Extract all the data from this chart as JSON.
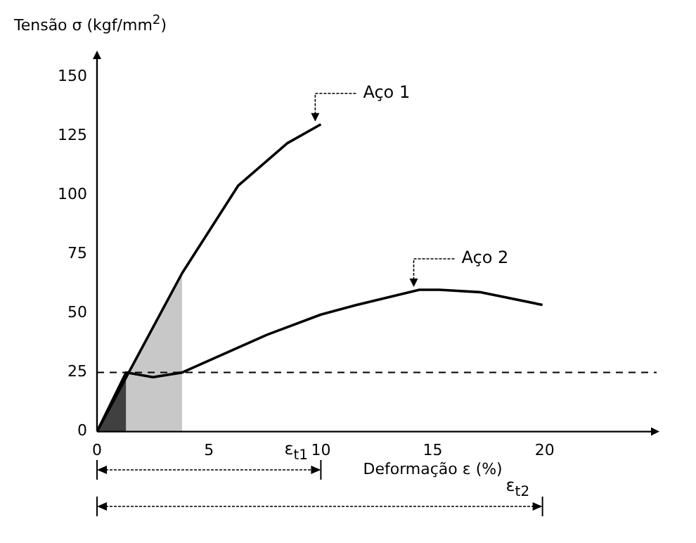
{
  "chart_data": {
    "type": "line",
    "xlabel": "Deformação ε (%)",
    "ylabel": "Tensão σ (kgf/mm$^{2}$)",
    "xlim": [
      0,
      25
    ],
    "xticks": [
      0,
      5,
      10,
      15,
      20
    ],
    "ylim": [
      0,
      160
    ],
    "yticks": [
      0,
      25,
      50,
      75,
      100,
      125,
      150
    ],
    "grid": false,
    "legend": false,
    "series": [
      {
        "type": "area",
        "color": "#c8c8c8",
        "x": [
          0,
          3.8
        ],
        "values": [
          0,
          67
        ]
      },
      {
        "type": "area",
        "color": "#404040",
        "x": [
          0,
          1.3
        ],
        "values": [
          0,
          25
        ]
      },
      {
        "name": "Aço 1",
        "color": "#000000",
        "x": [
          0,
          3.8,
          6.3,
          8.5,
          10
        ],
        "values": [
          0,
          67,
          104,
          122,
          130
        ]
      },
      {
        "name": "Aço 2",
        "color": "#000000",
        "x": [
          0,
          1.3,
          2.5,
          3.8,
          7.6,
          10,
          11.6,
          14.4,
          15.3,
          17.1,
          19.9
        ],
        "values": [
          0,
          25,
          23,
          25,
          41,
          49.5,
          53.6,
          60,
          60,
          59,
          53.6
        ]
      }
    ],
    "ref_lines": [
      {
        "axis": "y",
        "value": 25,
        "line_style": "dashed"
      }
    ],
    "annotations": [
      "ε$_{t1}$",
      "ε$_{t2}$"
    ]
  }
}
